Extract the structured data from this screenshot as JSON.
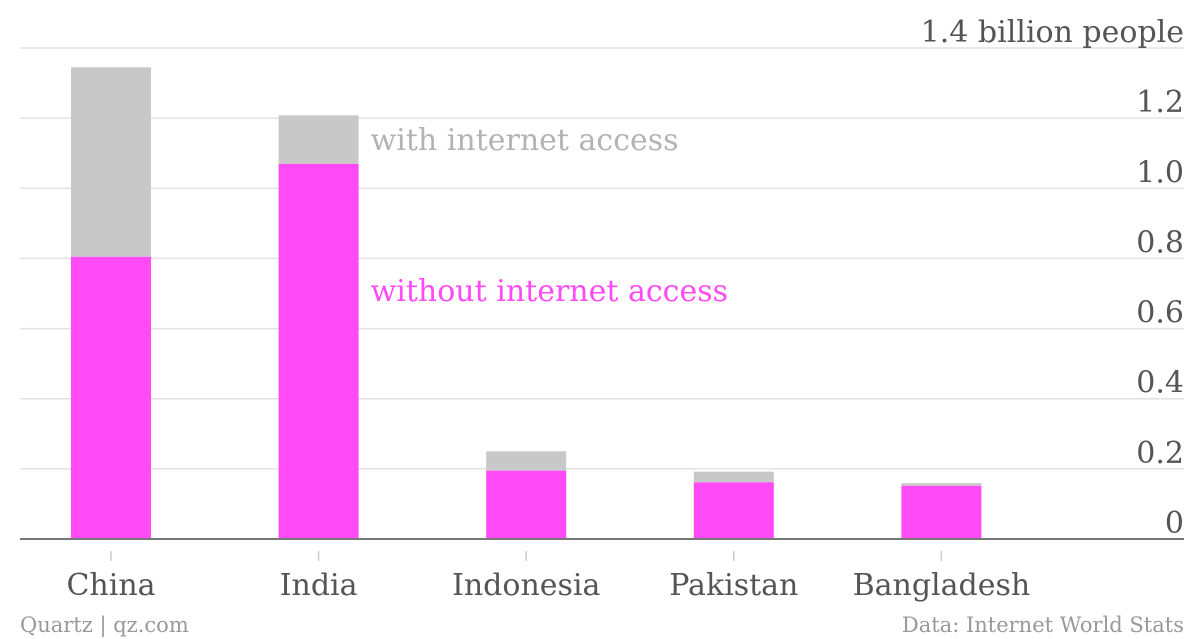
{
  "chart_data": {
    "type": "bar",
    "stacked": true,
    "categories": [
      "China",
      "India",
      "Indonesia",
      "Pakistan",
      "Bangladesh"
    ],
    "series": [
      {
        "name": "without internet access",
        "color": "#ff4af5",
        "values": [
          0.805,
          1.07,
          0.195,
          0.162,
          0.152
        ]
      },
      {
        "name": "with internet access",
        "color": "#c8c8c8",
        "values": [
          0.54,
          0.138,
          0.055,
          0.03,
          0.007
        ]
      }
    ],
    "ylim": [
      0,
      1.4
    ],
    "yticks": [
      {
        "value": 0,
        "label": "0"
      },
      {
        "value": 0.2,
        "label": "0.2"
      },
      {
        "value": 0.4,
        "label": "0.4"
      },
      {
        "value": 0.6,
        "label": "0.6"
      },
      {
        "value": 0.8,
        "label": "0.8"
      },
      {
        "value": 1.0,
        "label": "1.0"
      },
      {
        "value": 1.2,
        "label": "1.2"
      },
      {
        "value": 1.4,
        "label": "1.4 billion people"
      }
    ],
    "y_axis_position": "right",
    "grid": true,
    "legend": "inline labels next to India bar",
    "source": "Data: Internet World Stats",
    "credit": "Quartz | qz.com"
  }
}
